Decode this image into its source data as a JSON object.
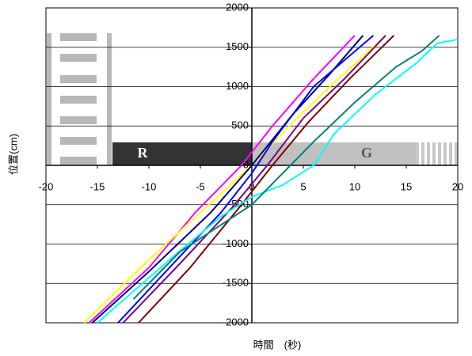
{
  "chart_data": {
    "type": "line",
    "xlabel": "時間　(秒)",
    "ylabel": "位置(cm)",
    "annotations": [
      "R",
      "G"
    ],
    "xlim": [
      -20,
      20
    ],
    "xticks": [
      -20,
      -15,
      -10,
      -5,
      0,
      5,
      10,
      15,
      20
    ],
    "ylim": [
      -2000,
      2000
    ],
    "yticks": [
      -2000,
      -1500,
      -1000,
      -500,
      0,
      500,
      1000,
      1500,
      2000
    ],
    "grid": true,
    "series": [
      {
        "color": "#ff00ff",
        "x": [
          -15.8,
          -10,
          -5.5,
          -1,
          2,
          6,
          10
        ],
        "values": [
          -2000,
          -1300,
          -600,
          0,
          500,
          1100,
          1650
        ]
      },
      {
        "color": "#ffff00",
        "x": [
          -16.3,
          -10,
          -5,
          0,
          4,
          8,
          13
        ],
        "values": [
          -2000,
          -1200,
          -600,
          0,
          550,
          1050,
          1650
        ]
      },
      {
        "color": "#000080",
        "x": [
          -15.5,
          -10,
          -4,
          0,
          4,
          7.5,
          10.8
        ],
        "values": [
          -2000,
          -1350,
          -600,
          0,
          650,
          1150,
          1650
        ]
      },
      {
        "color": "#0000ff",
        "x": [
          -13,
          -8,
          -3,
          0,
          2,
          6,
          11.8
        ],
        "values": [
          -2000,
          -1300,
          -600,
          -100,
          300,
          1000,
          1650
        ]
      },
      {
        "color": "#800080",
        "x": [
          -12.5,
          -7,
          -2,
          1.5,
          5,
          9,
          13
        ],
        "values": [
          -2000,
          -1250,
          -550,
          0,
          600,
          1100,
          1650
        ]
      },
      {
        "color": "#800000",
        "x": [
          -11,
          -6,
          -1,
          2,
          5.5,
          9.5,
          13.8
        ],
        "values": [
          -2000,
          -1300,
          -500,
          0,
          550,
          1100,
          1650
        ]
      },
      {
        "color": "#00ffff",
        "x": [
          -15,
          -8,
          -3,
          0,
          3,
          6,
          8,
          12,
          16,
          18,
          20
        ],
        "values": [
          -2000,
          -1200,
          -650,
          -400,
          -250,
          0,
          400,
          900,
          1300,
          1550,
          1600
        ]
      },
      {
        "color": "#008080",
        "x": [
          -11.5,
          -7,
          -3.5,
          0,
          3,
          6,
          10,
          14,
          16.5,
          18.2
        ],
        "values": [
          -1700,
          -1100,
          -800,
          -500,
          -100,
          300,
          800,
          1250,
          1450,
          1650
        ]
      }
    ]
  }
}
